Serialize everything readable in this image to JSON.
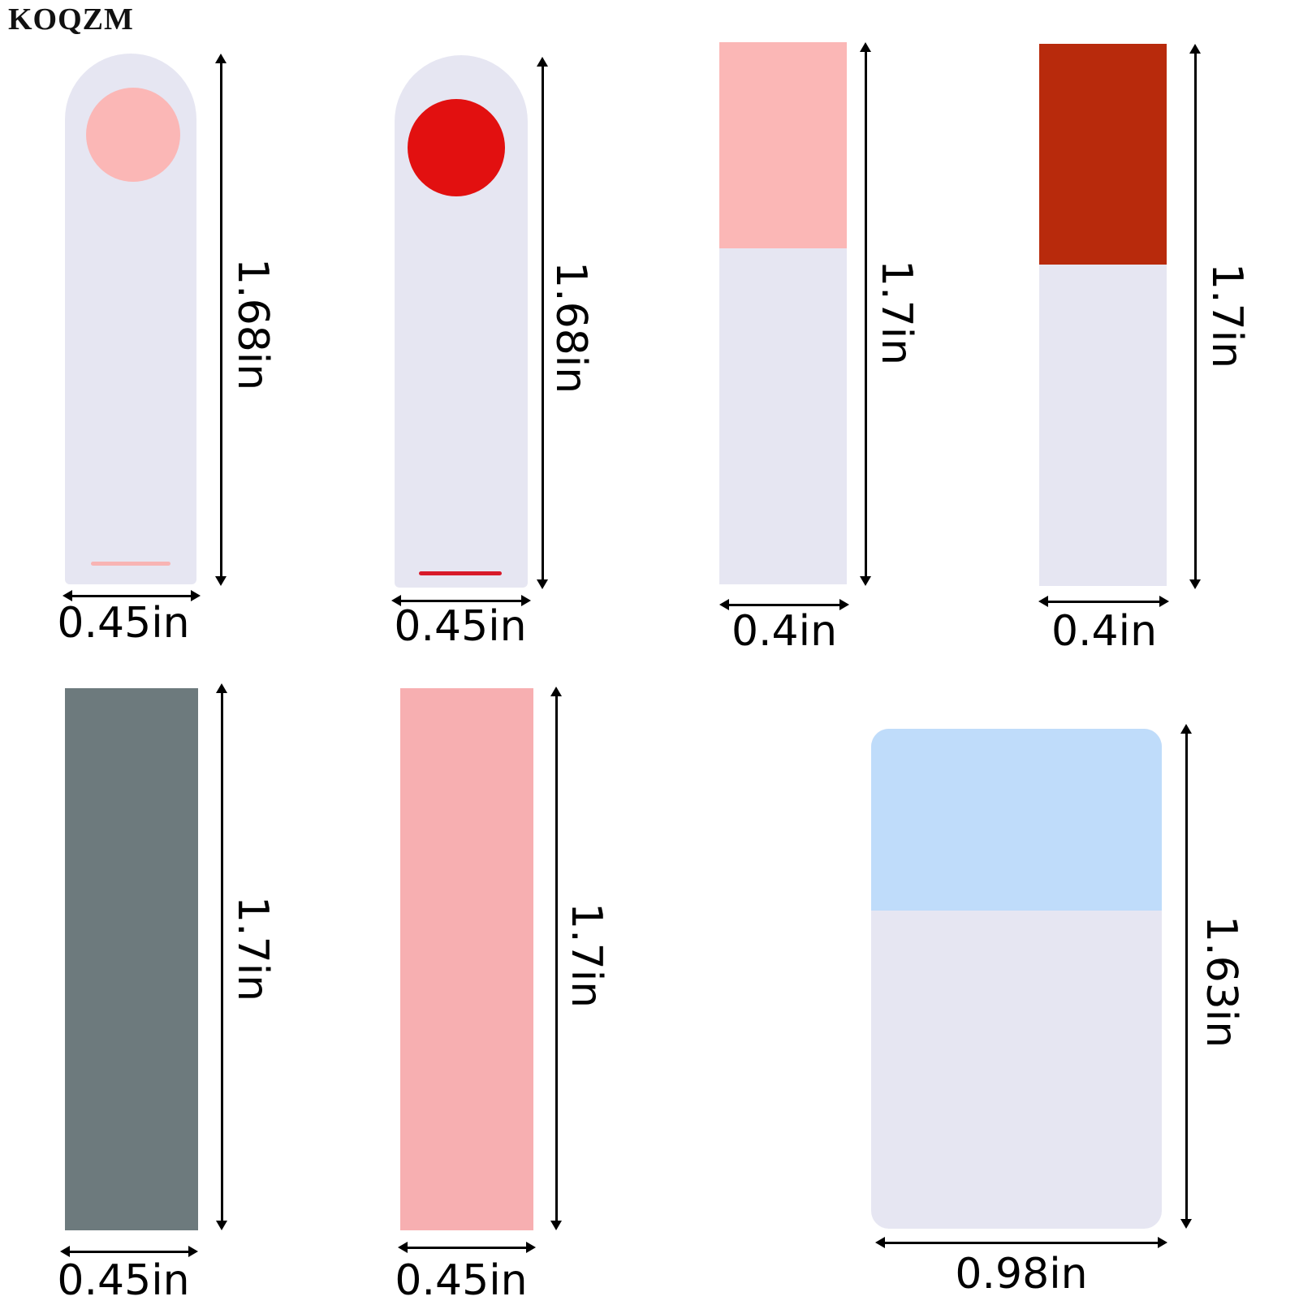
{
  "brand": {
    "text": "KOQZM"
  },
  "colors": {
    "film_white": "#e6e6f2",
    "light_pink": "#fbb7b6",
    "red": "#e21010",
    "dark_red": "#b82a0c",
    "gray": "#6d7a7d",
    "pink": "#f7afb1",
    "light_blue": "#bfdcfa"
  },
  "tabs": [
    {
      "id": "round-light-pink",
      "color": "light_pink",
      "width_label": "0.45in",
      "height_label": "1.68in"
    },
    {
      "id": "round-red",
      "color": "red",
      "width_label": "0.45in",
      "height_label": "1.68in"
    },
    {
      "id": "rect-light-pink",
      "color": "light_pink",
      "width_label": "0.4in",
      "height_label": "1.7in"
    },
    {
      "id": "rect-dark-red",
      "color": "dark_red",
      "width_label": "0.4in",
      "height_label": "1.7in"
    },
    {
      "id": "solid-gray",
      "color": "gray",
      "width_label": "0.45in",
      "height_label": "1.7in"
    },
    {
      "id": "solid-pink",
      "color": "pink",
      "width_label": "0.45in",
      "height_label": "1.7in"
    },
    {
      "id": "card-light-blue",
      "color": "light_blue",
      "width_label": "0.98in",
      "height_label": "1.63in"
    }
  ]
}
